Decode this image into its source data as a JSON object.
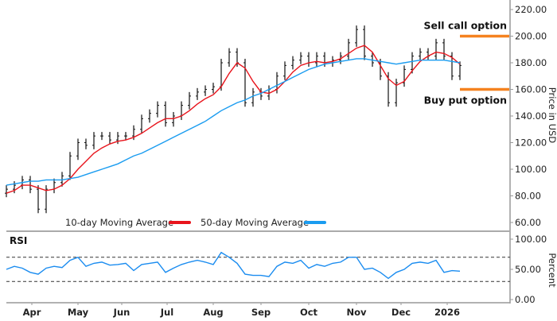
{
  "chart_data": [
    {
      "type": "ohlc-line",
      "title": "",
      "ylabel": "Price in USD",
      "ylim": [
        60,
        220
      ],
      "yticks": [
        "60.00",
        "80.00",
        "100.00",
        "120.00",
        "140.00",
        "160.00",
        "180.00",
        "200.00",
        "220.00"
      ],
      "ytick_values": [
        60,
        80,
        100,
        120,
        140,
        160,
        180,
        200,
        220
      ],
      "months": [
        {
          "label": "Apr",
          "index": 3.2
        },
        {
          "label": "May",
          "index": 9
        },
        {
          "label": "Jun",
          "index": 14.5
        },
        {
          "label": "Jul",
          "index": 20.2
        },
        {
          "label": "Aug",
          "index": 26
        },
        {
          "label": "Sep",
          "index": 32
        },
        {
          "label": "Oct",
          "index": 38
        },
        {
          "label": "Nov",
          "index": 44
        },
        {
          "label": "Dec",
          "index": 49.6
        },
        {
          "label": "2026",
          "index": 55.4
        }
      ],
      "close": [
        85,
        88,
        92,
        85,
        70,
        85,
        90,
        95,
        110,
        120,
        118,
        125,
        125,
        122,
        125,
        125,
        130,
        138,
        142,
        148,
        135,
        140,
        148,
        155,
        158,
        160,
        162,
        180,
        188,
        180,
        150,
        158,
        155,
        160,
        170,
        178,
        182,
        185,
        180,
        185,
        180,
        182,
        185,
        195,
        205,
        185,
        180,
        170,
        150,
        165,
        175,
        185,
        188,
        185,
        195,
        185,
        170,
        178
      ],
      "series": [
        {
          "name": "10-day Moving Average",
          "color": "#e8141c",
          "values": [
            82,
            84,
            88,
            88,
            86,
            84,
            85,
            88,
            93,
            100,
            106,
            112,
            116,
            119,
            121,
            122,
            124,
            127,
            131,
            135,
            138,
            138,
            140,
            144,
            149,
            153,
            156,
            162,
            172,
            180,
            176,
            166,
            158,
            157,
            160,
            166,
            173,
            178,
            180,
            181,
            180,
            181,
            183,
            187,
            191,
            193,
            188,
            178,
            168,
            163,
            166,
            174,
            181,
            185,
            188,
            187,
            184,
            179
          ]
        },
        {
          "name": "50-day Moving Average",
          "color": "#1a9cf0",
          "values": [
            88,
            89,
            90,
            91,
            91,
            92,
            92,
            92,
            93,
            94,
            96,
            98,
            100,
            102,
            104,
            107,
            110,
            112,
            115,
            118,
            121,
            124,
            127,
            130,
            133,
            136,
            140,
            144,
            147,
            150,
            152,
            155,
            157,
            160,
            163,
            166,
            169,
            172,
            175,
            177,
            179,
            180,
            181,
            182,
            183,
            183,
            182,
            181,
            180,
            179,
            180,
            181,
            182,
            182,
            182,
            182,
            181,
            180
          ]
        }
      ],
      "legend": "bottom",
      "annotations": [
        {
          "text": "Sell call option",
          "level": 200,
          "color": "#f5821f"
        },
        {
          "text": "Buy put option",
          "level": 160,
          "color": "#f5821f"
        }
      ]
    },
    {
      "type": "line",
      "title": "RSI",
      "ylabel": "Percent",
      "ylim": [
        0,
        100
      ],
      "yticks": [
        "0.00",
        "50.00",
        "100.00"
      ],
      "ytick_values": [
        0,
        50,
        100
      ],
      "reference_lines": [
        70,
        30
      ],
      "color": "#1a8cf0",
      "values": [
        50,
        55,
        52,
        45,
        42,
        52,
        55,
        53,
        65,
        70,
        55,
        60,
        62,
        57,
        58,
        60,
        48,
        58,
        60,
        62,
        45,
        52,
        58,
        62,
        65,
        62,
        58,
        78,
        70,
        60,
        42,
        40,
        40,
        38,
        55,
        62,
        60,
        65,
        52,
        58,
        55,
        60,
        62,
        70,
        70,
        50,
        52,
        45,
        35,
        45,
        50,
        60,
        62,
        60,
        65,
        45,
        48,
        47
      ]
    }
  ]
}
